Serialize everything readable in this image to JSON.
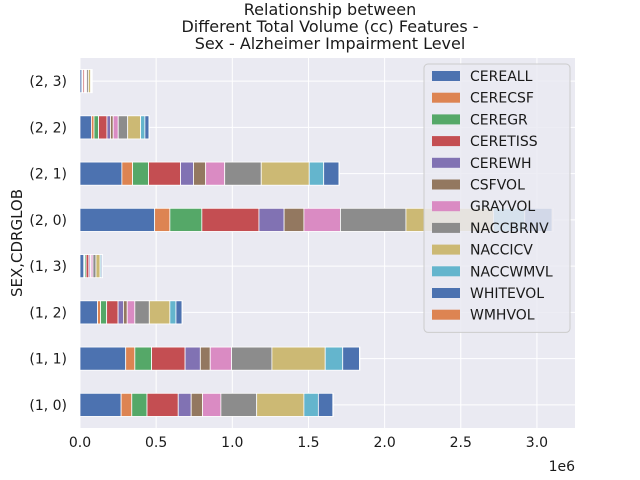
{
  "chart_data": {
    "type": "bar",
    "orientation": "horizontal",
    "stacked": true,
    "title_lines": [
      "Relationship between",
      "Different Total Volume (cc) Features -",
      "Sex - Alzheimer Impairment Level"
    ],
    "ylabel": "SEX,CDRGLOB",
    "xlabel": "",
    "x_offset_label": "1e6",
    "xlim": [
      0,
      3250000
    ],
    "xticks": [
      0,
      500000,
      1000000,
      1500000,
      2000000,
      2500000,
      3000000
    ],
    "xtick_labels": [
      "0.0",
      "0.5",
      "1.0",
      "1.5",
      "2.0",
      "2.5",
      "3.0"
    ],
    "grid": true,
    "legend_placement": "top-right",
    "categories": [
      "(1, 0)",
      "(1, 1)",
      "(1, 2)",
      "(1, 3)",
      "(2, 0)",
      "(2, 1)",
      "(2, 2)",
      "(2, 3)"
    ],
    "series": [
      {
        "name": "CEREALL",
        "color": "#4c72b0",
        "values": [
          270000,
          300000,
          115000,
          25000,
          490000,
          275000,
          75000,
          12000
        ]
      },
      {
        "name": "CERECSF",
        "color": "#dd8452",
        "values": [
          70000,
          60000,
          20000,
          5000,
          100000,
          70000,
          17000,
          3000
        ]
      },
      {
        "name": "CEREGR",
        "color": "#55a868",
        "values": [
          100000,
          110000,
          40000,
          10000,
          210000,
          105000,
          30000,
          5000
        ]
      },
      {
        "name": "CERETISS",
        "color": "#c44e52",
        "values": [
          205000,
          220000,
          75000,
          18000,
          375000,
          210000,
          55000,
          10000
        ]
      },
      {
        "name": "CEREWH",
        "color": "#8172b3",
        "values": [
          85000,
          100000,
          35000,
          9000,
          165000,
          85000,
          23000,
          5000
        ]
      },
      {
        "name": "CSFVOL",
        "color": "#937860",
        "values": [
          75000,
          65000,
          25000,
          6000,
          130000,
          80000,
          18000,
          3000
        ]
      },
      {
        "name": "GRAYVOL",
        "color": "#da8bc3",
        "values": [
          120000,
          140000,
          50000,
          12000,
          240000,
          125000,
          33000,
          6000
        ]
      },
      {
        "name": "NACCBRNV",
        "color": "#8c8c8c",
        "values": [
          235000,
          265000,
          95000,
          20000,
          430000,
          240000,
          62000,
          11000
        ]
      },
      {
        "name": "NACCICV",
        "color": "#ccb974",
        "values": [
          310000,
          350000,
          135000,
          27000,
          575000,
          315000,
          85000,
          15000
        ]
      },
      {
        "name": "NACCWMVL",
        "color": "#64b5cd",
        "values": [
          95000,
          115000,
          40000,
          8000,
          205000,
          95000,
          28000,
          5000
        ]
      },
      {
        "name": "WHITEVOL",
        "color": "#4c72b0",
        "values": [
          95000,
          110000,
          40000,
          8000,
          180000,
          100000,
          27000,
          5000
        ]
      },
      {
        "name": "WMHVOL",
        "color": "#dd8452",
        "values": [
          3000,
          3000,
          1500,
          500,
          6000,
          3000,
          1000,
          300
        ]
      }
    ]
  }
}
